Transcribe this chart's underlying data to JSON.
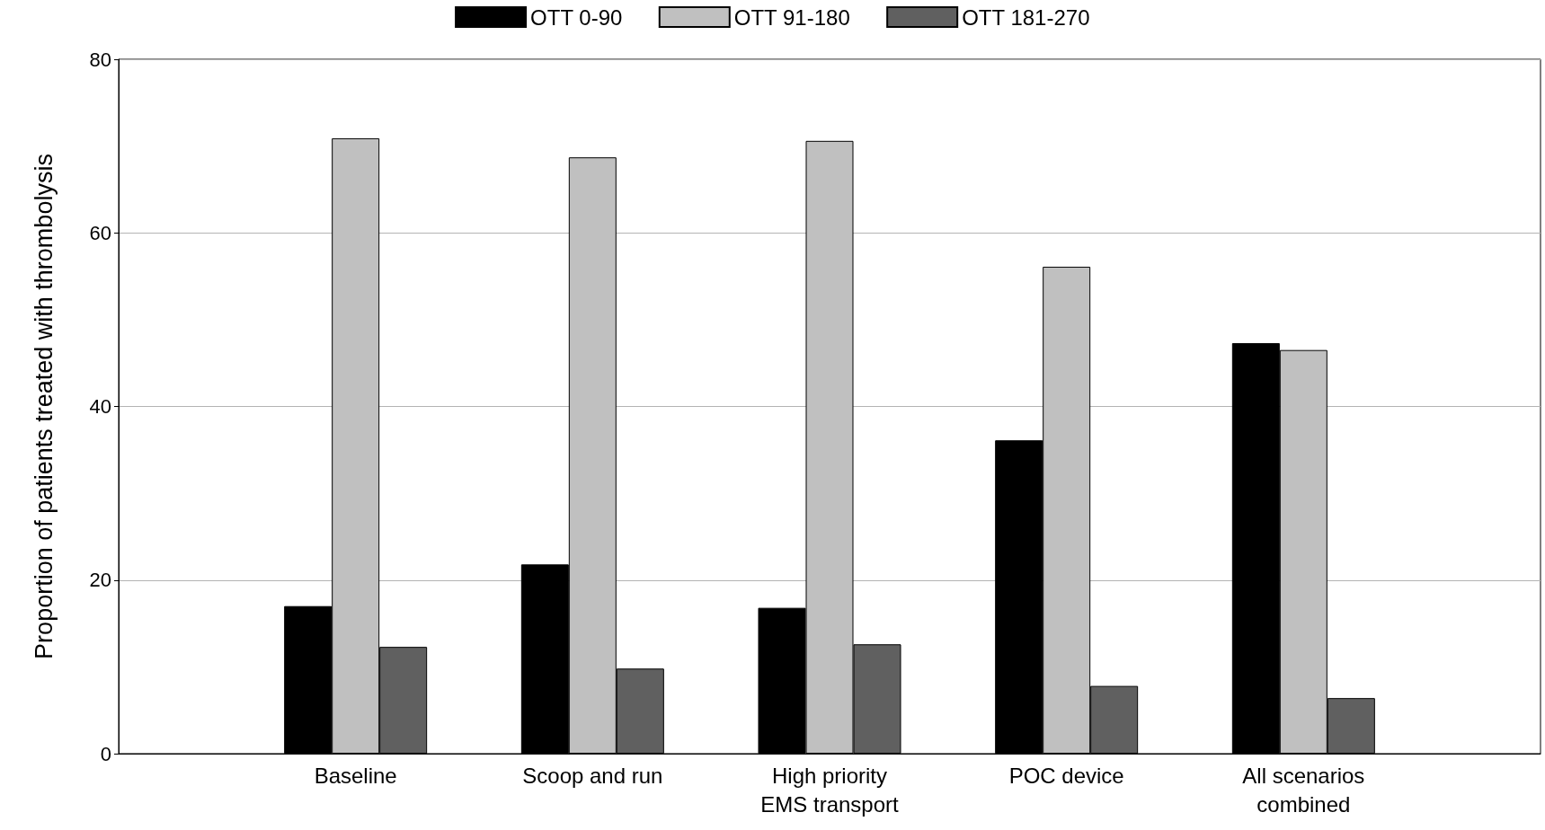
{
  "chart_data": {
    "type": "bar",
    "ylabel": "Proportion of patients treated with thrombolysis",
    "categories": [
      null,
      "Baseline",
      "Scoop and run",
      "High priority\nEMS transport",
      "POC device",
      "All scenarios\ncombined",
      null
    ],
    "series": [
      {
        "name": "OTT 0-90",
        "color": "#000000",
        "values": [
          null,
          17,
          21.8,
          16.8,
          36.1,
          47.3,
          null
        ]
      },
      {
        "name": "OTT 91-180",
        "color": "#c0c0c0",
        "values": [
          null,
          70.9,
          68.7,
          70.6,
          56.1,
          46.5,
          null
        ]
      },
      {
        "name": "OTT 181-270",
        "color": "#606060",
        "values": [
          null,
          12.3,
          9.8,
          12.6,
          7.8,
          6.4,
          null
        ]
      }
    ],
    "ylim": [
      0,
      80
    ],
    "yticks": [
      0,
      20,
      40,
      60,
      80
    ],
    "grid": "y",
    "legend": "top"
  }
}
